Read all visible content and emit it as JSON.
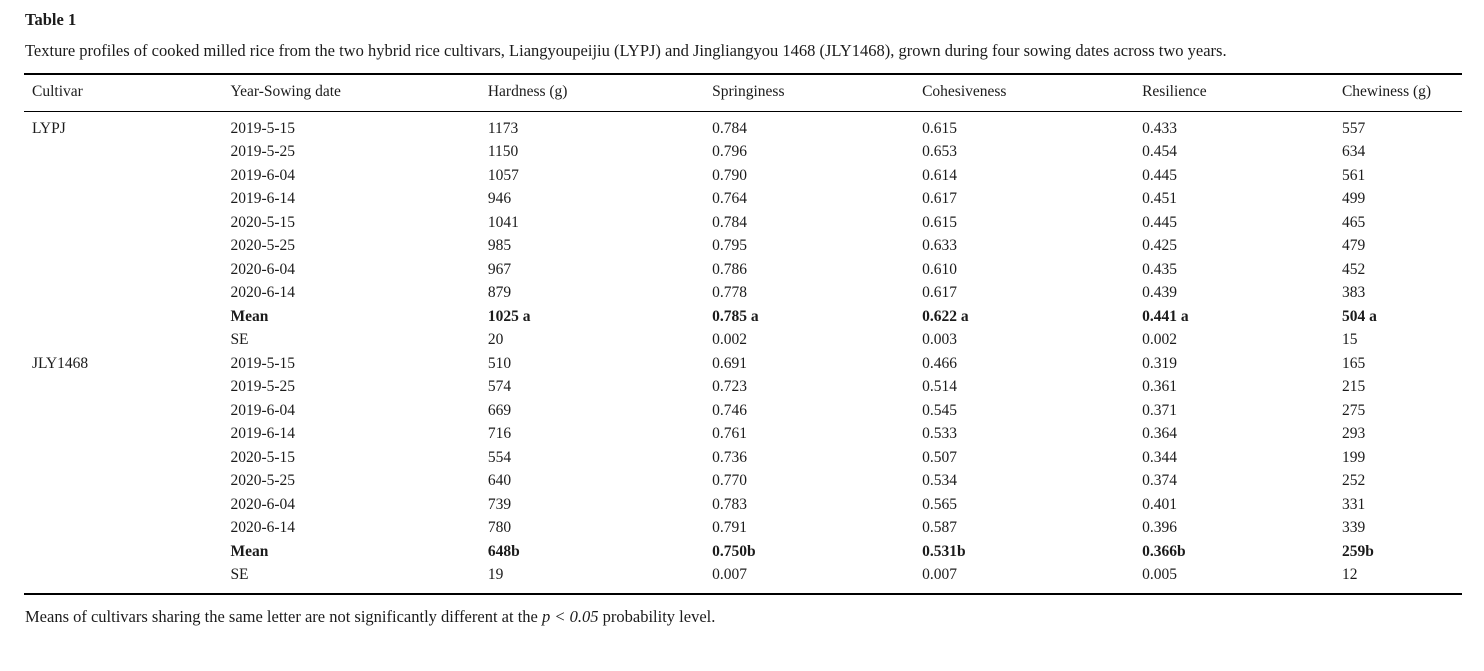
{
  "title": "Table 1",
  "caption": "Texture profiles of cooked milled rice from the two hybrid rice cultivars, Liangyoupeijiu (LYPJ) and Jingliangyou 1468 (JLY1468), grown during four sowing dates across two years.",
  "table": {
    "columns": [
      "Cultivar",
      "Year-Sowing date",
      "Hardness (g)",
      "Springiness",
      "Cohesiveness",
      "Resilience",
      "Chewiness (g)"
    ],
    "groups": [
      {
        "cultivar": "LYPJ",
        "rows": [
          {
            "label": "2019-5-15",
            "values": [
              "1173",
              "0.784",
              "0.615",
              "0.433",
              "557"
            ],
            "bold": false
          },
          {
            "label": "2019-5-25",
            "values": [
              "1150",
              "0.796",
              "0.653",
              "0.454",
              "634"
            ],
            "bold": false
          },
          {
            "label": "2019-6-04",
            "values": [
              "1057",
              "0.790",
              "0.614",
              "0.445",
              "561"
            ],
            "bold": false
          },
          {
            "label": "2019-6-14",
            "values": [
              "946",
              "0.764",
              "0.617",
              "0.451",
              "499"
            ],
            "bold": false
          },
          {
            "label": "2020-5-15",
            "values": [
              "1041",
              "0.784",
              "0.615",
              "0.445",
              "465"
            ],
            "bold": false
          },
          {
            "label": "2020-5-25",
            "values": [
              "985",
              "0.795",
              "0.633",
              "0.425",
              "479"
            ],
            "bold": false
          },
          {
            "label": "2020-6-04",
            "values": [
              "967",
              "0.786",
              "0.610",
              "0.435",
              "452"
            ],
            "bold": false
          },
          {
            "label": "2020-6-14",
            "values": [
              "879",
              "0.778",
              "0.617",
              "0.439",
              "383"
            ],
            "bold": false
          },
          {
            "label": "Mean",
            "values": [
              "1025 a",
              "0.785 a",
              "0.622 a",
              "0.441 a",
              "504 a"
            ],
            "bold": true
          },
          {
            "label": "SE",
            "values": [
              "20",
              "0.002",
              "0.003",
              "0.002",
              "15"
            ],
            "bold": false
          }
        ]
      },
      {
        "cultivar": "JLY1468",
        "rows": [
          {
            "label": "2019-5-15",
            "values": [
              "510",
              "0.691",
              "0.466",
              "0.319",
              "165"
            ],
            "bold": false
          },
          {
            "label": "2019-5-25",
            "values": [
              "574",
              "0.723",
              "0.514",
              "0.361",
              "215"
            ],
            "bold": false
          },
          {
            "label": "2019-6-04",
            "values": [
              "669",
              "0.746",
              "0.545",
              "0.371",
              "275"
            ],
            "bold": false
          },
          {
            "label": "2019-6-14",
            "values": [
              "716",
              "0.761",
              "0.533",
              "0.364",
              "293"
            ],
            "bold": false
          },
          {
            "label": "2020-5-15",
            "values": [
              "554",
              "0.736",
              "0.507",
              "0.344",
              "199"
            ],
            "bold": false
          },
          {
            "label": "2020-5-25",
            "values": [
              "640",
              "0.770",
              "0.534",
              "0.374",
              "252"
            ],
            "bold": false
          },
          {
            "label": "2020-6-04",
            "values": [
              "739",
              "0.783",
              "0.565",
              "0.401",
              "331"
            ],
            "bold": false
          },
          {
            "label": "2020-6-14",
            "values": [
              "780",
              "0.791",
              "0.587",
              "0.396",
              "339"
            ],
            "bold": false
          },
          {
            "label": "Mean",
            "values": [
              "648b",
              "0.750b",
              "0.531b",
              "0.366b",
              "259b"
            ],
            "bold": true
          },
          {
            "label": "SE",
            "values": [
              "19",
              "0.007",
              "0.007",
              "0.005",
              "12"
            ],
            "bold": false
          }
        ]
      }
    ]
  },
  "footnote": {
    "prefix": "Means of cultivars sharing the same letter are not significantly different at the ",
    "italic": "p < 0.05",
    "suffix": " probability level."
  }
}
